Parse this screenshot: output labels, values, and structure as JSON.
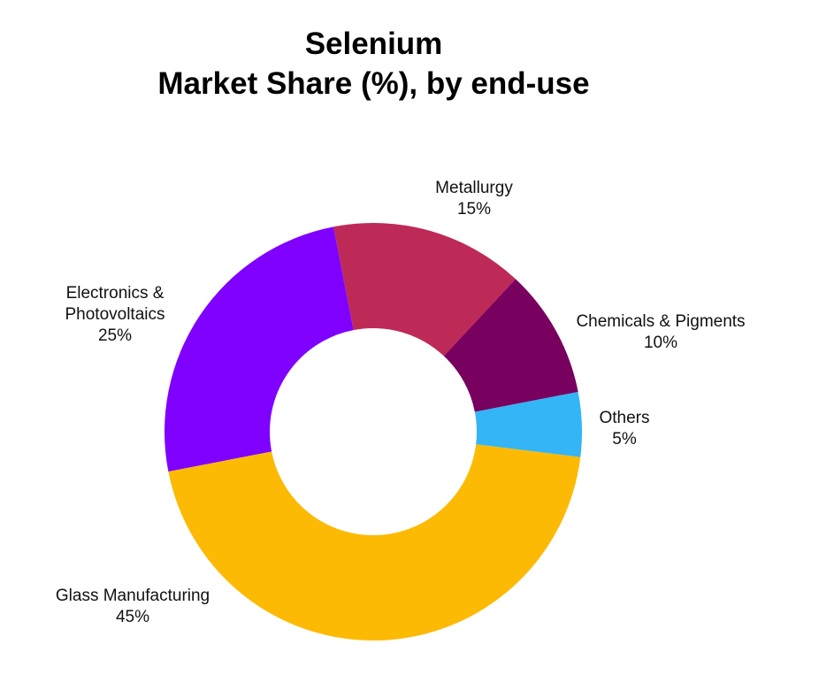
{
  "chart_data": {
    "type": "pie",
    "donut": true,
    "title_line1": "Selenium",
    "title_line2": "Market Share (%), by end-use",
    "slices": [
      {
        "label": "Metallurgy",
        "value": 15,
        "value_label": "15%",
        "color": "#BE2A57"
      },
      {
        "label": "Chemicals & Pigments",
        "value": 10,
        "value_label": "10%",
        "color": "#78005E"
      },
      {
        "label": "Others",
        "value": 5,
        "value_label": "5%",
        "color": "#33B5F6"
      },
      {
        "label": "Glass Manufacturing",
        "value": 45,
        "value_label": "45%",
        "color": "#FCBA04"
      },
      {
        "label": "Electronics & Photovoltaics",
        "label_lines": [
          "Electronics &",
          "Photovoltaics"
        ],
        "value": 25,
        "value_label": "25%",
        "color": "#8000FF"
      }
    ],
    "legend": "none"
  }
}
